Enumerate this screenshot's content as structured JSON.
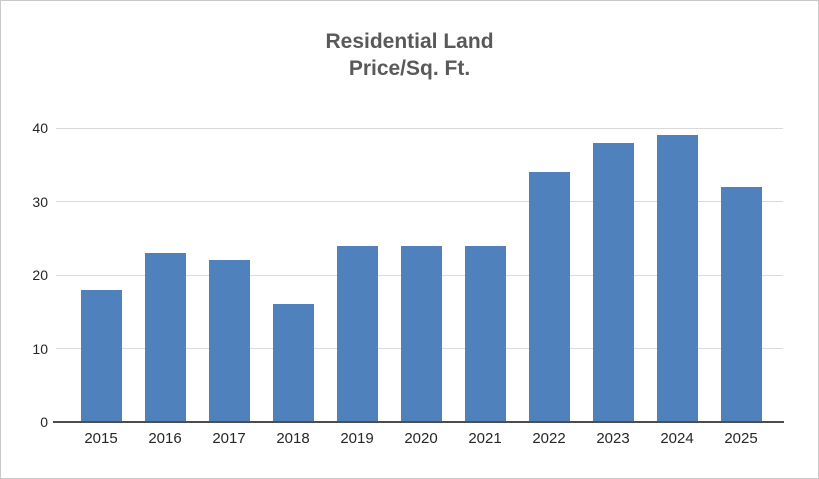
{
  "chart_data": {
    "type": "bar",
    "title": "Residential Land Price/Sq. Ft.",
    "title_lines": [
      "Residential Land",
      "Price/Sq. Ft."
    ],
    "categories": [
      "2015",
      "2016",
      "2017",
      "2018",
      "2019",
      "2020",
      "2021",
      "2022",
      "2023",
      "2024",
      "2025"
    ],
    "values": [
      18,
      23,
      22,
      16,
      24,
      24,
      24,
      34,
      38,
      39,
      32
    ],
    "xlabel": "",
    "ylabel": "",
    "ylim": [
      0,
      40
    ],
    "ytick_step": 10,
    "ytick_labels": [
      "0",
      "10",
      "20",
      "30",
      "40"
    ],
    "grid": true,
    "legend": false,
    "colors": {
      "bar": "#4F81BD",
      "gridline": "#D9D9D9",
      "axis_line": "#4D4D4D",
      "title_text": "#595959",
      "tick_text": "#262626",
      "background": "#FFFFFF",
      "frame_border": "#C9C9C9"
    }
  }
}
